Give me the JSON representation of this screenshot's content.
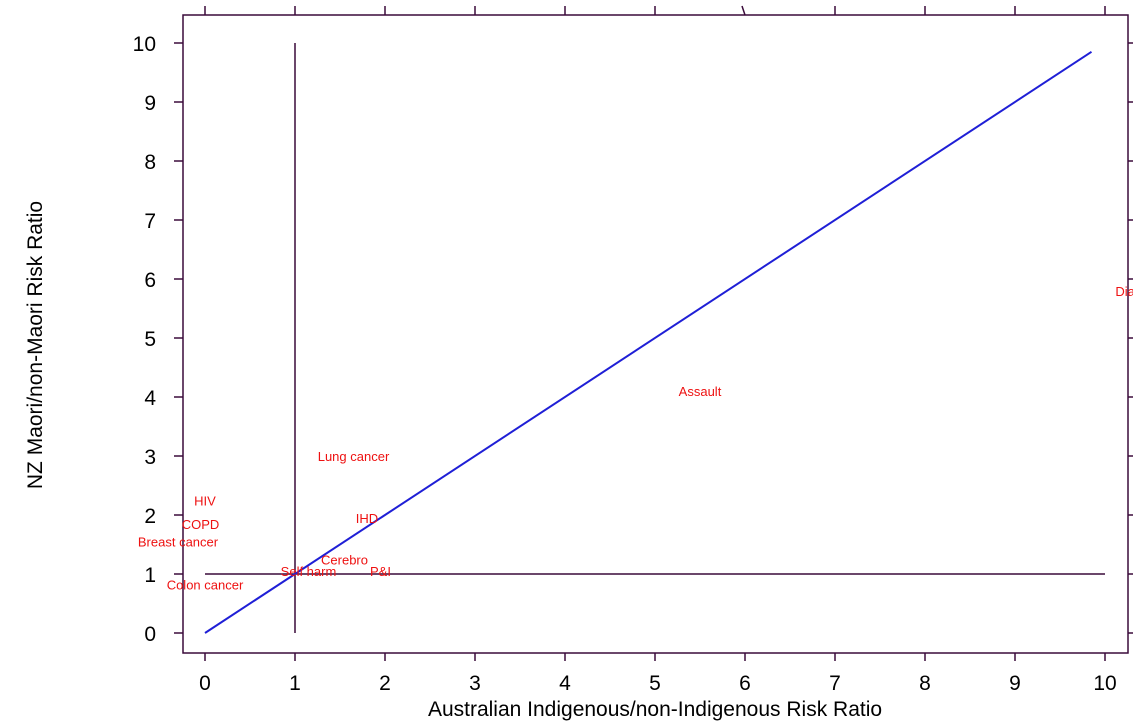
{
  "chart_data": {
    "type": "scatter",
    "xlabel": "Australian Indigenous/non-Indigenous Risk Ratio",
    "ylabel": "NZ Maori/non-Maori Risk Ratio",
    "xlim": [
      -0.25,
      10.25
    ],
    "ylim": [
      -0.25,
      10.25
    ],
    "x_ticks": [
      "0",
      "1",
      "2",
      "3",
      "4",
      "5",
      "6",
      "7",
      "8",
      "9",
      "10"
    ],
    "y_ticks": [
      "0",
      "1",
      "2",
      "3",
      "4",
      "5",
      "6",
      "7",
      "8",
      "9",
      "10"
    ],
    "grid": false,
    "points": [
      {
        "label": "Diabetes",
        "x": 10.4,
        "y": 5.8
      },
      {
        "label": "Assault",
        "x": 5.5,
        "y": 4.1
      },
      {
        "label": "Lung cancer",
        "x": 1.65,
        "y": 3.0
      },
      {
        "label": "HIV",
        "x": 0.0,
        "y": 2.25
      },
      {
        "label": "IHD",
        "x": 1.8,
        "y": 1.95
      },
      {
        "label": "COPD",
        "x": -0.05,
        "y": 1.85
      },
      {
        "label": "Breast cancer",
        "x": -0.3,
        "y": 1.55
      },
      {
        "label": "Cerebro",
        "x": 1.55,
        "y": 1.25
      },
      {
        "label": "Self harm",
        "x": 1.15,
        "y": 1.05
      },
      {
        "label": "P&I",
        "x": 1.95,
        "y": 1.05
      },
      {
        "label": "Colon cancer",
        "x": 0.0,
        "y": 0.82
      }
    ],
    "reference_lines": [
      {
        "kind": "vertical",
        "x": 1,
        "y_from": 0,
        "y_to": 10,
        "color": "#3a0a3a"
      },
      {
        "kind": "horizontal",
        "y": 1,
        "x_from": 0,
        "x_to": 10,
        "color": "#3a0a3a"
      },
      {
        "kind": "diagonal",
        "from": [
          0,
          0
        ],
        "to": [
          9.85,
          9.85
        ],
        "color": "#1f1fd6"
      }
    ],
    "colors": {
      "axis": "#3a0a3a",
      "label": "#ee1111",
      "diagonal": "#1f1fd6"
    }
  }
}
